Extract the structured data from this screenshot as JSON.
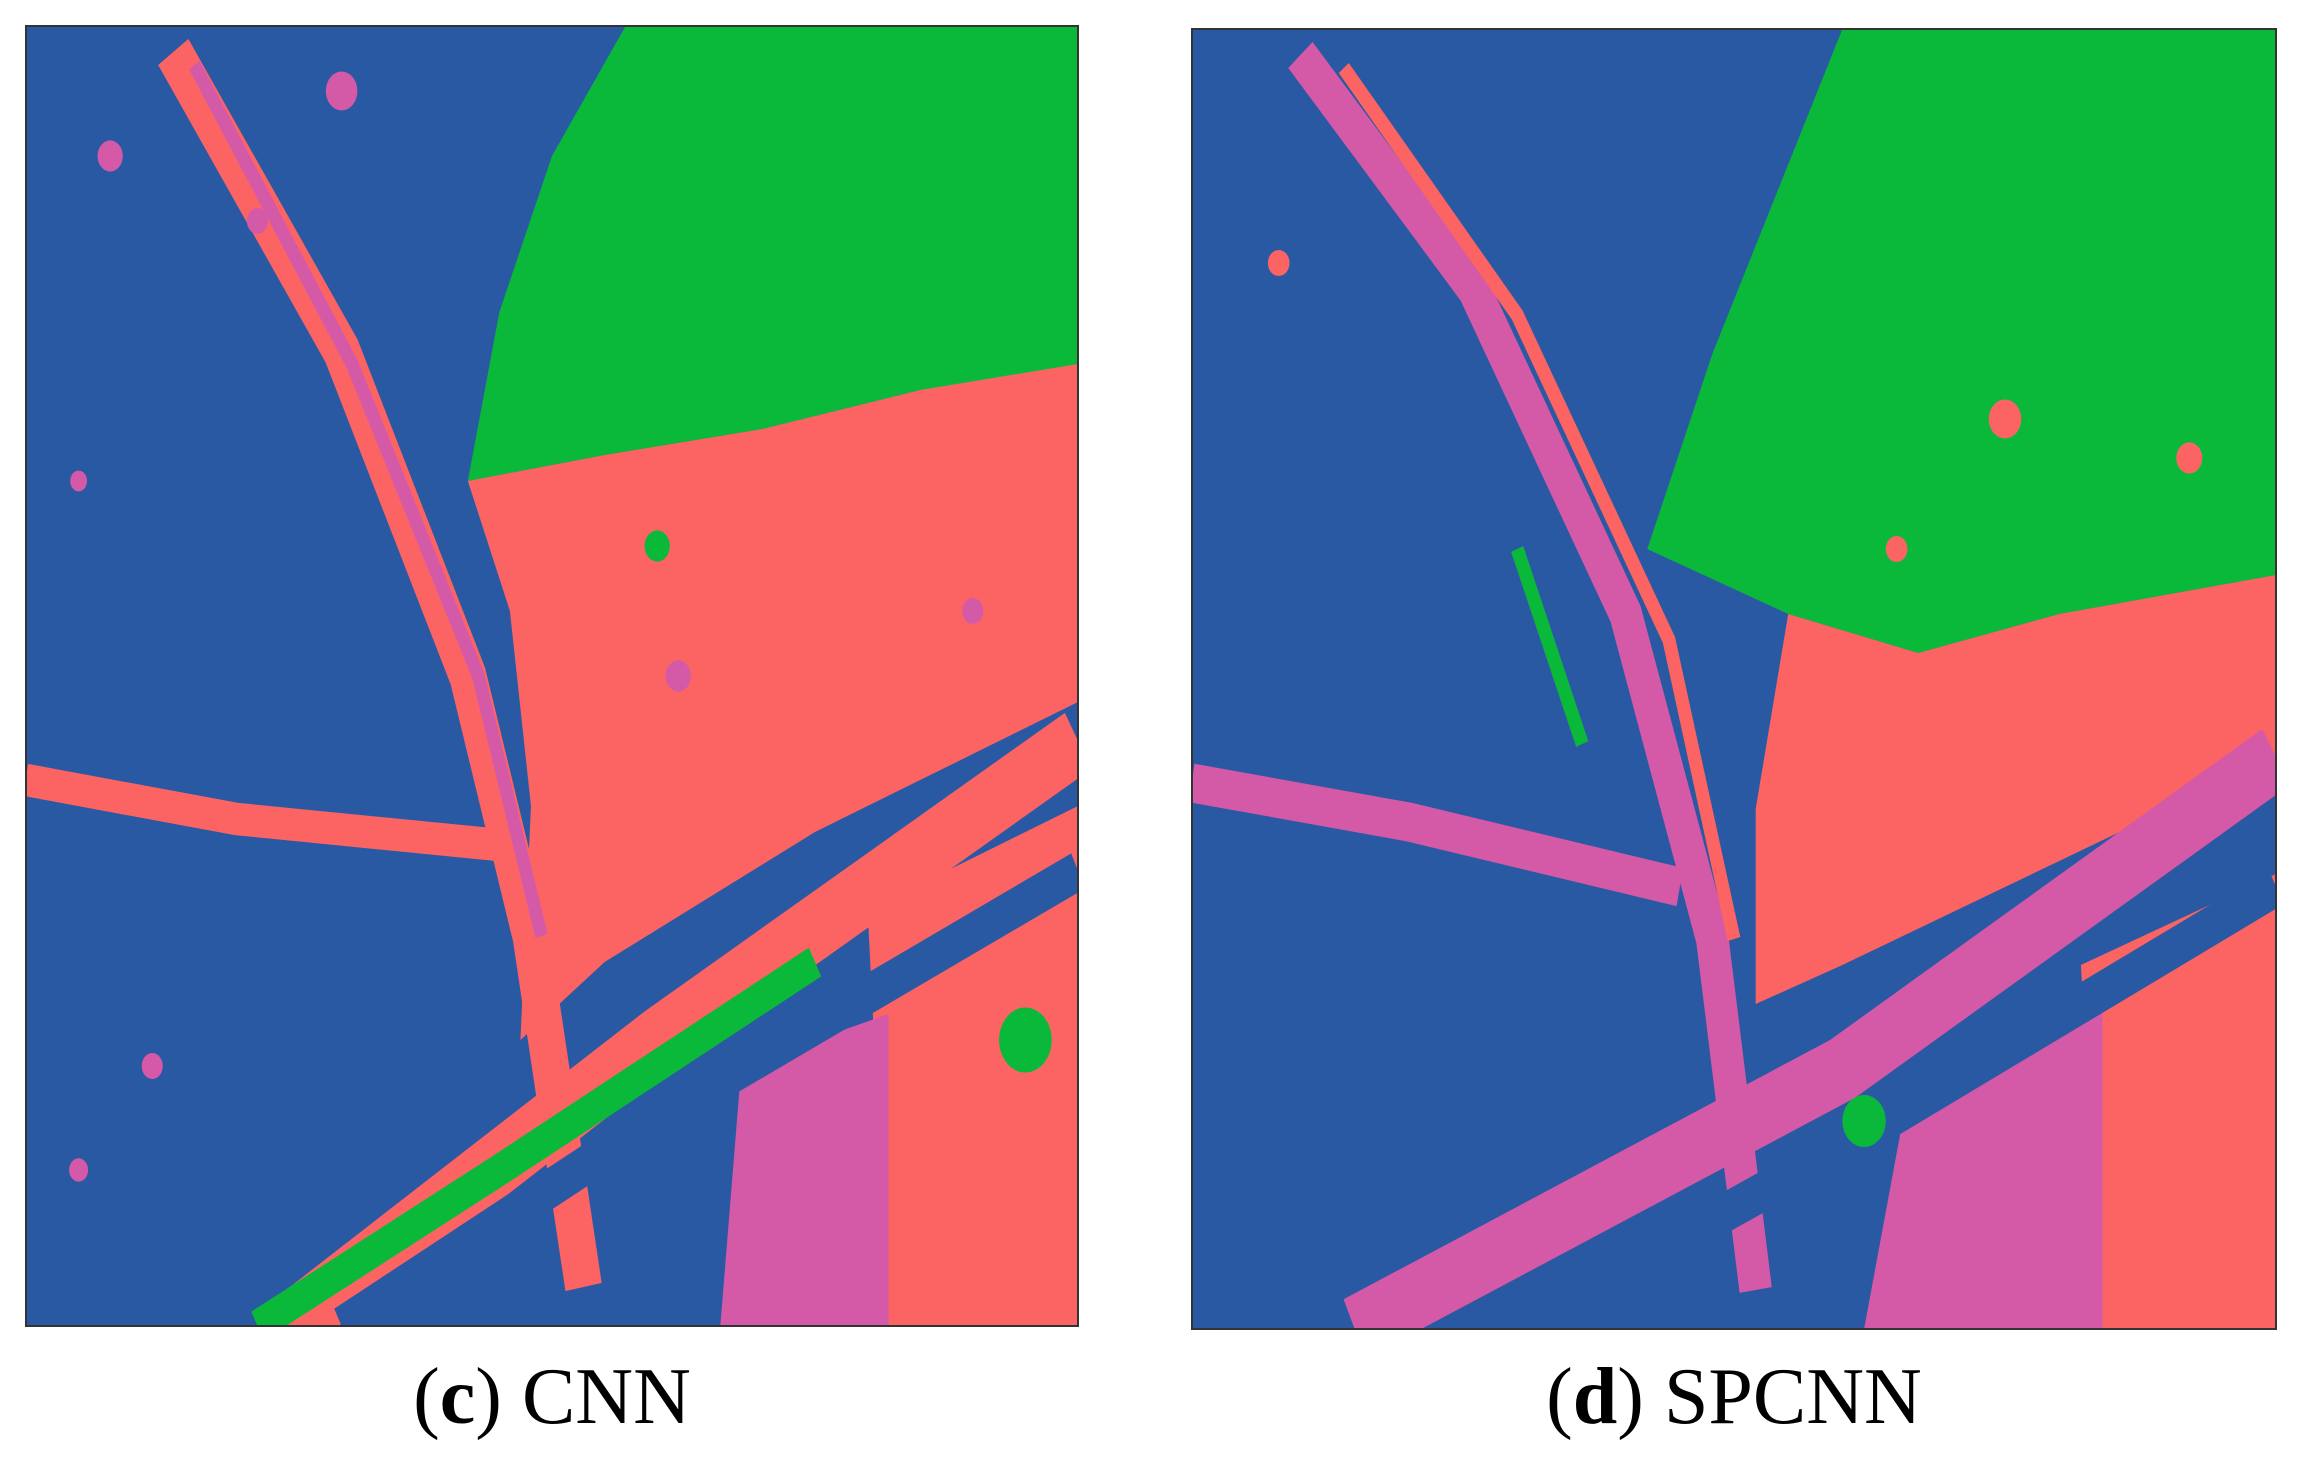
{
  "panels": [
    {
      "open": "(",
      "letter": "c",
      "close": ")",
      "method": "CNN"
    },
    {
      "open": "(",
      "letter": "d",
      "close": ")",
      "method": "SPCNN"
    }
  ]
}
